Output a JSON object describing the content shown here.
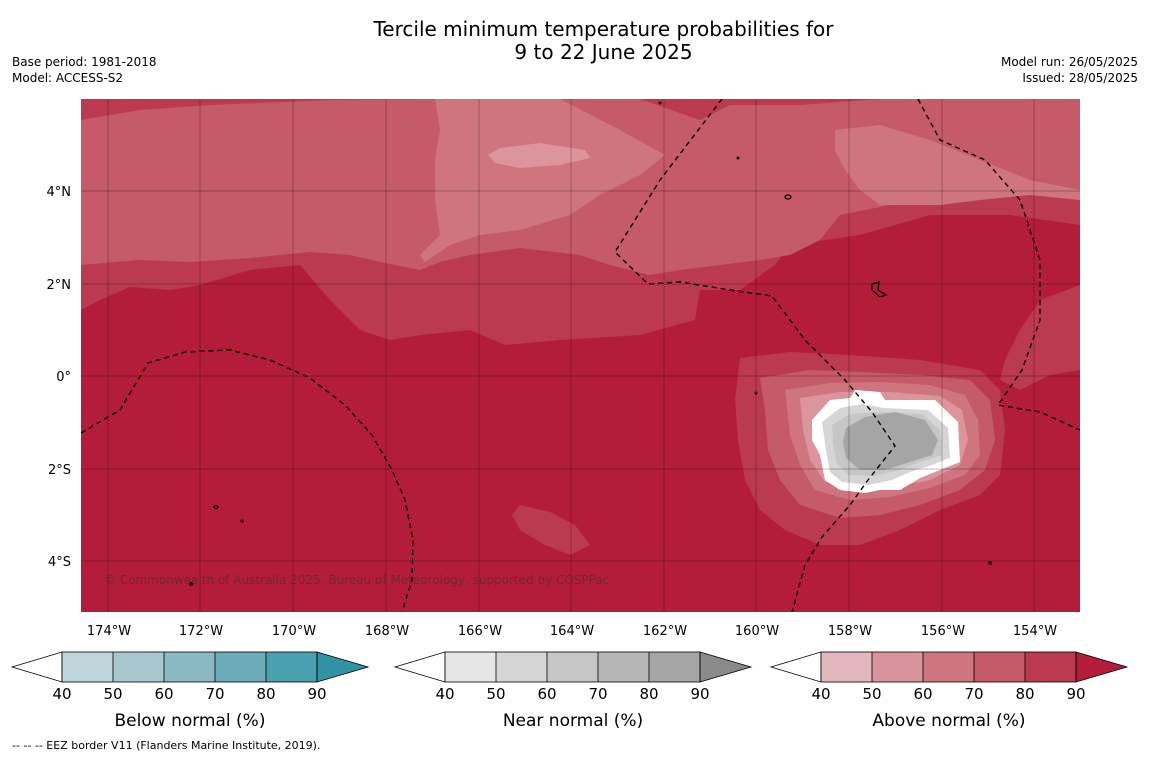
{
  "title_line1": "Tercile minimum temperature probabilities for",
  "title_line2": "9 to 22 June 2025",
  "base_period": "Base period: 1981-2018",
  "model": "Model: ACCESS-S2",
  "model_run": "Model run: 26/05/2025",
  "issued": "Issued: 28/05/2025",
  "copyright": "© Commonwealth of Australia 2025, Bureau of Meteorology, supported by COSPPac",
  "footnote": "--  --  -- EEZ border V11 (Flanders Marine Institute, 2019).",
  "lon_labels": [
    "174°W",
    "172°W",
    "170°W",
    "168°W",
    "166°W",
    "164°W",
    "162°W",
    "160°W",
    "158°W",
    "156°W",
    "154°W"
  ],
  "lat_labels": [
    "4°N",
    "2°N",
    "0°",
    "2°S",
    "4°S"
  ],
  "colorbars": [
    {
      "title": "Below normal (%)",
      "ticks": [
        "40",
        "50",
        "60",
        "70",
        "80",
        "90"
      ],
      "colors": [
        "#bed5db",
        "#a9c7ce",
        "#8ab8c3",
        "#6cabb9",
        "#4aa0af",
        "#2f93a5"
      ]
    },
    {
      "title": "Near normal (%)",
      "ticks": [
        "40",
        "50",
        "60",
        "70",
        "80",
        "90"
      ],
      "colors": [
        "#e6e6e6",
        "#d6d6d6",
        "#c6c6c6",
        "#b6b6b6",
        "#a5a5a5",
        "#8a8a8a"
      ]
    },
    {
      "title": "Above normal (%)",
      "ticks": [
        "40",
        "50",
        "60",
        "70",
        "80",
        "90"
      ],
      "colors": [
        "#e3b7bd",
        "#d8939c",
        "#cf7580",
        "#c55a68",
        "#bb3a50",
        "#b31d3a"
      ]
    }
  ]
}
